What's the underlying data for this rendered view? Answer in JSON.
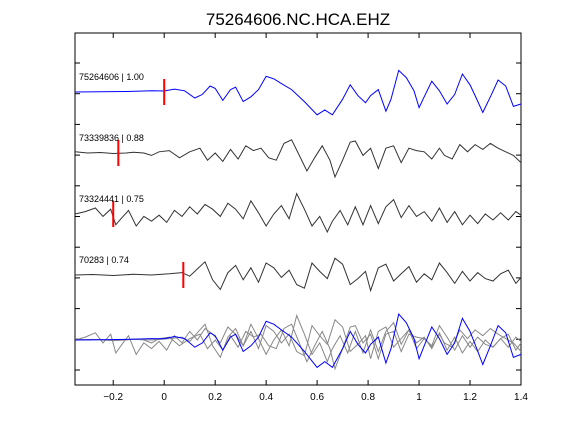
{
  "chart_data": {
    "type": "line",
    "title": "75264606.NC.HCA.EHZ",
    "xlabel": "",
    "ylabel": "",
    "xlim": [
      -0.35,
      1.4
    ],
    "x_ticks": [
      -0.2,
      0,
      0.2,
      0.4,
      0.6,
      0.8,
      1,
      1.2,
      1.4
    ],
    "x_tick_labels": [
      "−0.2",
      "0",
      "0.2",
      "0.4",
      "0.6",
      "0.8",
      "1",
      "1.2",
      "1.4"
    ],
    "y_ticks_count": 11,
    "grid": false,
    "colors": {
      "reference": "#0000ff",
      "neighbor": "#333333",
      "overlay": "#888888",
      "pick": "#ff0000",
      "axes": "#000000"
    },
    "traces": [
      {
        "label": "75264606 | 1.00",
        "pick_time": 0.0,
        "color": "reference",
        "waveform": [
          [
            -0.35,
            0
          ],
          [
            -0.25,
            0.01
          ],
          [
            -0.15,
            0.02
          ],
          [
            -0.05,
            0.05
          ],
          [
            0.0,
            0.04
          ],
          [
            0.04,
            0.12
          ],
          [
            0.08,
            0.05
          ],
          [
            0.12,
            -0.25
          ],
          [
            0.15,
            -0.1
          ],
          [
            0.18,
            0.25
          ],
          [
            0.2,
            0.15
          ],
          [
            0.23,
            -0.35
          ],
          [
            0.26,
            0.1
          ],
          [
            0.28,
            0.2
          ],
          [
            0.31,
            -0.4
          ],
          [
            0.34,
            -0.2
          ],
          [
            0.37,
            0.1
          ],
          [
            0.4,
            0.65
          ],
          [
            0.43,
            0.55
          ],
          [
            0.46,
            0.35
          ],
          [
            0.5,
            0.1
          ],
          [
            0.55,
            -0.4
          ],
          [
            0.6,
            -0.95
          ],
          [
            0.63,
            -0.75
          ],
          [
            0.66,
            -0.95
          ],
          [
            0.7,
            -0.3
          ],
          [
            0.73,
            0.3
          ],
          [
            0.76,
            -0.15
          ],
          [
            0.79,
            -0.45
          ],
          [
            0.81,
            -0.15
          ],
          [
            0.84,
            0.1
          ],
          [
            0.87,
            -0.8
          ],
          [
            0.89,
            -0.3
          ],
          [
            0.92,
            0.9
          ],
          [
            0.95,
            0.6
          ],
          [
            0.98,
            0.05
          ],
          [
            1.0,
            -0.65
          ],
          [
            1.02,
            -0.2
          ],
          [
            1.05,
            0.45
          ],
          [
            1.08,
            0.05
          ],
          [
            1.11,
            -0.5
          ],
          [
            1.14,
            -0.1
          ],
          [
            1.17,
            0.75
          ],
          [
            1.2,
            0.3
          ],
          [
            1.22,
            -0.15
          ],
          [
            1.25,
            -0.85
          ],
          [
            1.28,
            -0.2
          ],
          [
            1.31,
            0.5
          ],
          [
            1.34,
            0.25
          ],
          [
            1.37,
            -0.6
          ],
          [
            1.4,
            -0.5
          ]
        ]
      },
      {
        "label": "73339836 | 0.88",
        "pick_time": -0.18,
        "color": "neighbor",
        "waveform": [
          [
            -0.35,
            0.05
          ],
          [
            -0.3,
            0.0
          ],
          [
            -0.25,
            0.02
          ],
          [
            -0.2,
            -0.02
          ],
          [
            -0.15,
            0.0
          ],
          [
            -0.12,
            0.03
          ],
          [
            -0.08,
            0.0
          ],
          [
            -0.05,
            -0.1
          ],
          [
            -0.02,
            0.05
          ],
          [
            0.02,
            0.1
          ],
          [
            0.06,
            -0.2
          ],
          [
            0.1,
            0.05
          ],
          [
            0.14,
            0.2
          ],
          [
            0.17,
            -0.3
          ],
          [
            0.2,
            0.0
          ],
          [
            0.23,
            -0.35
          ],
          [
            0.26,
            0.15
          ],
          [
            0.29,
            -0.25
          ],
          [
            0.32,
            0.3
          ],
          [
            0.35,
            0.1
          ],
          [
            0.38,
            0.2
          ],
          [
            0.41,
            -0.2
          ],
          [
            0.44,
            -0.3
          ],
          [
            0.47,
            0.4
          ],
          [
            0.5,
            0.55
          ],
          [
            0.53,
            -0.1
          ],
          [
            0.56,
            -0.75
          ],
          [
            0.59,
            -0.2
          ],
          [
            0.62,
            0.3
          ],
          [
            0.65,
            -0.3
          ],
          [
            0.67,
            -1.0
          ],
          [
            0.7,
            -0.3
          ],
          [
            0.73,
            0.45
          ],
          [
            0.75,
            0.5
          ],
          [
            0.78,
            -0.1
          ],
          [
            0.81,
            0.2
          ],
          [
            0.84,
            -0.65
          ],
          [
            0.87,
            0.2
          ],
          [
            0.9,
            0.3
          ],
          [
            0.93,
            -0.4
          ],
          [
            0.96,
            0.2
          ],
          [
            0.99,
            0.1
          ],
          [
            1.02,
            0.05
          ],
          [
            1.05,
            -0.25
          ],
          [
            1.08,
            0.2
          ],
          [
            1.1,
            -0.1
          ],
          [
            1.13,
            -0.25
          ],
          [
            1.16,
            0.35
          ],
          [
            1.19,
            0.05
          ],
          [
            1.22,
            0.35
          ],
          [
            1.25,
            0.15
          ],
          [
            1.28,
            0.4
          ],
          [
            1.31,
            0.2
          ],
          [
            1.34,
            0.05
          ],
          [
            1.37,
            -0.1
          ],
          [
            1.4,
            -0.4
          ]
        ]
      },
      {
        "label": "73324441 | 0.75",
        "pick_time": -0.2,
        "color": "neighbor",
        "waveform": [
          [
            -0.35,
            0.0
          ],
          [
            -0.31,
            0.1
          ],
          [
            -0.27,
            0.25
          ],
          [
            -0.24,
            -0.1
          ],
          [
            -0.21,
            0.2
          ],
          [
            -0.19,
            -0.45
          ],
          [
            -0.17,
            -0.2
          ],
          [
            -0.14,
            0.15
          ],
          [
            -0.11,
            -0.5
          ],
          [
            -0.08,
            -0.1
          ],
          [
            -0.05,
            -0.3
          ],
          [
            -0.02,
            -0.05
          ],
          [
            0.01,
            -0.35
          ],
          [
            0.04,
            0.15
          ],
          [
            0.07,
            -0.1
          ],
          [
            0.1,
            0.3
          ],
          [
            0.13,
            0.0
          ],
          [
            0.16,
            0.4
          ],
          [
            0.19,
            0.2
          ],
          [
            0.22,
            -0.1
          ],
          [
            0.25,
            0.45
          ],
          [
            0.28,
            0.2
          ],
          [
            0.31,
            -0.2
          ],
          [
            0.34,
            0.55
          ],
          [
            0.37,
            0.05
          ],
          [
            0.4,
            -0.5
          ],
          [
            0.43,
            0.0
          ],
          [
            0.46,
            0.35
          ],
          [
            0.49,
            -0.2
          ],
          [
            0.52,
            0.85
          ],
          [
            0.55,
            0.2
          ],
          [
            0.58,
            -0.5
          ],
          [
            0.61,
            -0.1
          ],
          [
            0.64,
            -0.75
          ],
          [
            0.66,
            -0.3
          ],
          [
            0.69,
            0.15
          ],
          [
            0.72,
            -0.45
          ],
          [
            0.75,
            0.3
          ],
          [
            0.78,
            -0.45
          ],
          [
            0.81,
            0.35
          ],
          [
            0.84,
            -0.4
          ],
          [
            0.87,
            0.3
          ],
          [
            0.9,
            0.6
          ],
          [
            0.93,
            -0.15
          ],
          [
            0.96,
            0.35
          ],
          [
            0.99,
            -0.1
          ],
          [
            1.02,
            0.1
          ],
          [
            1.05,
            -0.3
          ],
          [
            1.08,
            0.25
          ],
          [
            1.11,
            -0.35
          ],
          [
            1.14,
            0.1
          ],
          [
            1.17,
            -0.45
          ],
          [
            1.2,
            -0.05
          ],
          [
            1.23,
            -0.4
          ],
          [
            1.26,
            0.0
          ],
          [
            1.29,
            -0.25
          ],
          [
            1.32,
            0.05
          ],
          [
            1.35,
            -0.25
          ],
          [
            1.38,
            0.1
          ],
          [
            1.4,
            -0.05
          ]
        ]
      },
      {
        "label": "70283 | 0.74",
        "pick_time": 0.075,
        "color": "neighbor",
        "waveform": [
          [
            -0.35,
            0.0
          ],
          [
            -0.28,
            0.02
          ],
          [
            -0.2,
            -0.02
          ],
          [
            -0.12,
            0.03
          ],
          [
            -0.05,
            0.0
          ],
          [
            0.02,
            0.05
          ],
          [
            0.07,
            0.1
          ],
          [
            0.1,
            -0.05
          ],
          [
            0.13,
            0.25
          ],
          [
            0.16,
            0.55
          ],
          [
            0.19,
            -0.2
          ],
          [
            0.22,
            -0.6
          ],
          [
            0.25,
            0.1
          ],
          [
            0.28,
            0.4
          ],
          [
            0.31,
            -0.2
          ],
          [
            0.34,
            0.3
          ],
          [
            0.37,
            -0.3
          ],
          [
            0.4,
            0.5
          ],
          [
            0.43,
            0.3
          ],
          [
            0.46,
            -0.1
          ],
          [
            0.49,
            0.2
          ],
          [
            0.52,
            -0.4
          ],
          [
            0.55,
            -0.55
          ],
          [
            0.58,
            0.5
          ],
          [
            0.61,
            0.15
          ],
          [
            0.64,
            -0.15
          ],
          [
            0.67,
            0.7
          ],
          [
            0.7,
            0.45
          ],
          [
            0.73,
            -0.4
          ],
          [
            0.76,
            -0.15
          ],
          [
            0.79,
            0.15
          ],
          [
            0.81,
            -0.65
          ],
          [
            0.84,
            0.3
          ],
          [
            0.87,
            0.45
          ],
          [
            0.9,
            -0.25
          ],
          [
            0.93,
            0.05
          ],
          [
            0.96,
            0.35
          ],
          [
            0.99,
            -0.3
          ],
          [
            1.02,
            0.05
          ],
          [
            1.05,
            -0.2
          ],
          [
            1.08,
            0.5
          ],
          [
            1.11,
            0.1
          ],
          [
            1.14,
            -0.35
          ],
          [
            1.17,
            0.15
          ],
          [
            1.2,
            -0.25
          ],
          [
            1.23,
            0.1
          ],
          [
            1.26,
            -0.15
          ],
          [
            1.29,
            -0.25
          ],
          [
            1.32,
            0.05
          ],
          [
            1.35,
            0.2
          ],
          [
            1.38,
            -0.35
          ],
          [
            1.4,
            -0.1
          ]
        ]
      }
    ]
  }
}
